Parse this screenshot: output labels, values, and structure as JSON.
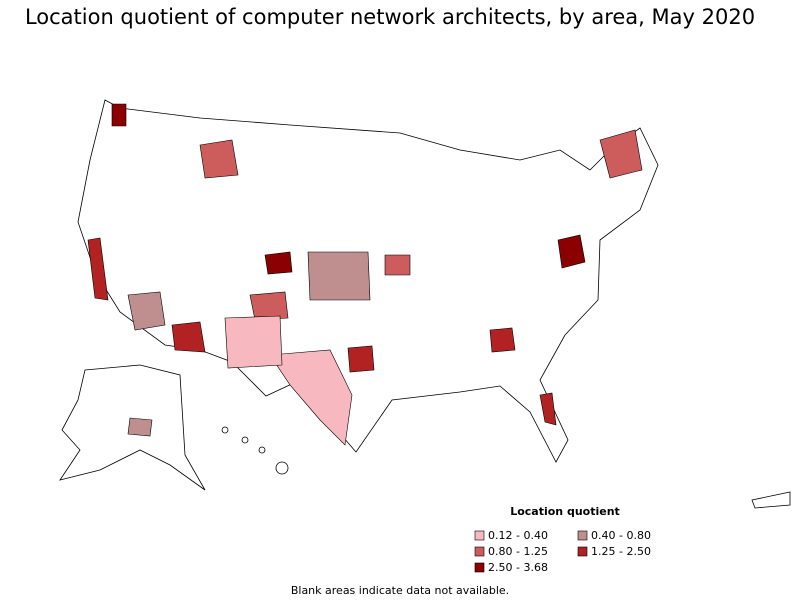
{
  "title": "Location quotient of computer network architects, by area, May 2020",
  "legend": {
    "title": "Location quotient",
    "items": [
      {
        "label": "0.12 - 0.40",
        "color": "#f7b9bf"
      },
      {
        "label": "0.40 - 0.80",
        "color": "#bf8f8f"
      },
      {
        "label": "0.80 - 1.25",
        "color": "#cd5c5c"
      },
      {
        "label": "1.25 - 2.50",
        "color": "#b22222"
      },
      {
        "label": "2.50 - 3.68",
        "color": "#8b0000"
      }
    ]
  },
  "note": "Blank areas indicate data not available."
}
